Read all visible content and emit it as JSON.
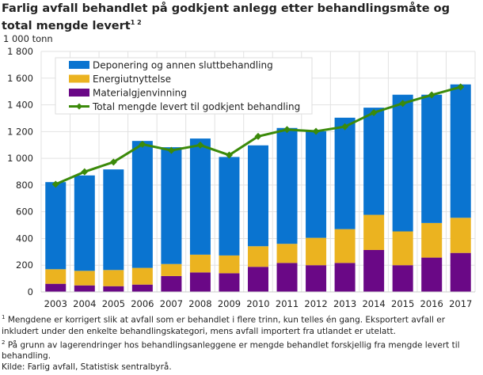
{
  "title": "Farlig avfall behandlet på godkjent anlegg etter behandlingsmåte og total mengde levert",
  "title_sup": "1 2",
  "unit": "1 000 tonn",
  "colors": {
    "deponering": "#0a74d0",
    "energi": "#ebb320",
    "material": "#6a0886",
    "total": "#3b8a0a",
    "grid": "#e2e2e2"
  },
  "chart_data": {
    "type": "bar",
    "stacked": true,
    "categories": [
      "2003",
      "2004",
      "2005",
      "2006",
      "2007",
      "2008",
      "2009",
      "2010",
      "2011",
      "2012",
      "2013",
      "2014",
      "2015",
      "2016",
      "2017"
    ],
    "ylim": [
      0,
      1800
    ],
    "yticks": [
      0,
      200,
      400,
      600,
      800,
      1000,
      1200,
      1400,
      1600,
      1800
    ],
    "ytick_labels": [
      "0",
      "200",
      "400",
      "600",
      "800",
      "1 000",
      "1 200",
      "1 400",
      "1 600",
      "1 800"
    ],
    "grid": true,
    "legend_placement": "top-left",
    "series": [
      {
        "name": "Materialgjenvinning",
        "key": "material",
        "values": [
          61,
          49,
          43,
          55,
          119,
          146,
          140,
          188,
          217,
          200,
          217,
          314,
          200,
          257,
          292
        ]
      },
      {
        "name": "Energiutnyttelse",
        "key": "energi",
        "values": [
          109,
          109,
          121,
          125,
          90,
          133,
          133,
          154,
          143,
          205,
          253,
          263,
          253,
          259,
          263
        ]
      },
      {
        "name": "Deponering og annen sluttbehandling",
        "key": "deponering",
        "values": [
          652,
          714,
          753,
          950,
          874,
          869,
          737,
          755,
          867,
          797,
          834,
          802,
          1023,
          960,
          998
        ]
      }
    ],
    "line": {
      "name": "Total mengde levert til godkjent behandling",
      "key": "total",
      "values": [
        806,
        899,
        972,
        1105,
        1059,
        1099,
        1024,
        1164,
        1215,
        1202,
        1237,
        1342,
        1411,
        1474,
        1534
      ]
    },
    "legend_order": [
      "Deponering og annen sluttbehandling",
      "Energiutnyttelse",
      "Materialgjenvinning",
      "Total mengde levert til godkjent behandling"
    ]
  },
  "notes": {
    "n1_sup": "1",
    "n1": "Mengdene er korrigert slik at avfall som er behandlet i flere trinn, kun telles én gang. Eksportert avfall er inkludert under den enkelte behandlingskategori, mens avfall importert fra utlandet er utelatt.",
    "n2_sup": "2",
    "n2": "På grunn av lagerendringer hos behandlingsanleggene er mengde behandlet forskjellig fra mengde levert til behandling.",
    "source": "Kilde: Farlig avfall, Statistisk sentralbyrå."
  }
}
